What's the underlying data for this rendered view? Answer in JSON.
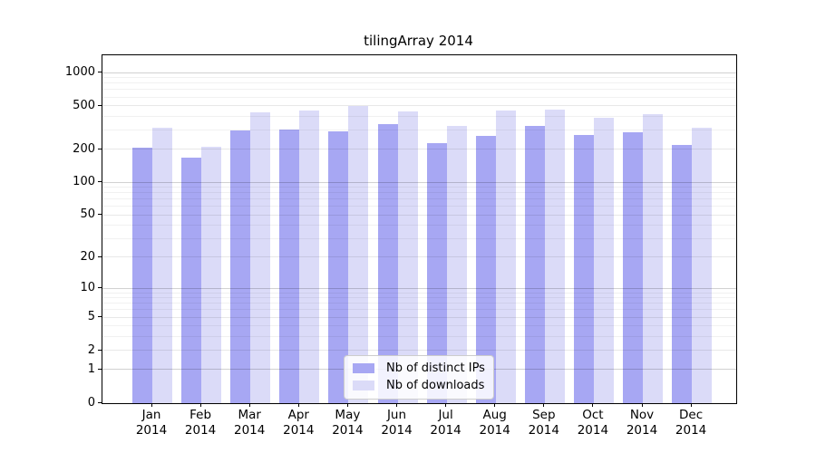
{
  "title": "tilingArray 2014",
  "chart_data": {
    "type": "bar",
    "title": "tilingArray 2014",
    "categories": [
      "Jan 2014",
      "Feb 2014",
      "Mar 2014",
      "Apr 2014",
      "May 2014",
      "Jun 2014",
      "Jul 2014",
      "Aug 2014",
      "Sep 2014",
      "Oct 2014",
      "Nov 2014",
      "Dec 2014"
    ],
    "series": [
      {
        "name": "Nb of distinct IPs",
        "color": "#a7a7f3",
        "values": [
          210,
          170,
          300,
          305,
          295,
          345,
          230,
          270,
          330,
          275,
          290,
          220
        ]
      },
      {
        "name": "Nb of downloads",
        "color": "#dbdbf8",
        "values": [
          315,
          215,
          435,
          455,
          505,
          450,
          330,
          455,
          465,
          395,
          420,
          315
        ]
      }
    ],
    "xlabel": "",
    "ylabel": "",
    "yscale": "log1p",
    "yticks": [
      0,
      1,
      2,
      5,
      10,
      20,
      50,
      100,
      200,
      500,
      1000
    ],
    "ylim": [
      0,
      1450
    ],
    "grid": true,
    "grid_on_top": true,
    "legend_position": "bottom-center",
    "axis_color": "#000000",
    "background_color": "#ffffff",
    "grid_decade_color": "rgba(0,0,0,0.18)",
    "grid_major_color": "rgba(0,0,0,0.09)",
    "grid_minor_color": "rgba(0,0,0,0.055)"
  }
}
